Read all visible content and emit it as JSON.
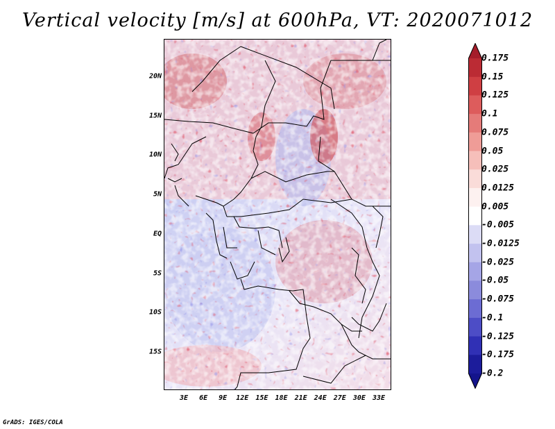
{
  "title": "Vertical velocity [m/s] at 600hPa, VT: 2020071012",
  "map": {
    "region": "Central Africa",
    "variable": "Vertical velocity",
    "units": "m/s",
    "level": "600hPa",
    "valid_time": "2020071012",
    "lat_labels": [
      "20N",
      "15N",
      "10N",
      "5N",
      "EQ",
      "5S",
      "10S",
      "15S"
    ],
    "lon_labels": [
      "3E",
      "6E",
      "9E",
      "12E",
      "15E",
      "18E",
      "21E",
      "24E",
      "27E",
      "30E",
      "33E"
    ]
  },
  "colorbar": {
    "labels": [
      "0.175",
      "0.15",
      "0.125",
      "0.1",
      "0.075",
      "0.05",
      "0.025",
      "0.0125",
      "0.005",
      "-0.005",
      "-0.0125",
      "-0.025",
      "-0.05",
      "-0.075",
      "-0.1",
      "-0.125",
      "-0.175",
      "-0.2"
    ],
    "colors": [
      "#a51d2a",
      "#bb2b34",
      "#cf3f43",
      "#dd5c5c",
      "#e57b79",
      "#ef9c97",
      "#f6bfba",
      "#fadcd9",
      "#fdf1f0",
      "#ffffff",
      "#dcdcf6",
      "#c2c2ef",
      "#a5a5e6",
      "#8b8bdc",
      "#6c6cd3",
      "#4d4dc6",
      "#3030b5",
      "#1c1c9b",
      "#14148c"
    ]
  },
  "footer": "GrADS: IGES/COLA"
}
